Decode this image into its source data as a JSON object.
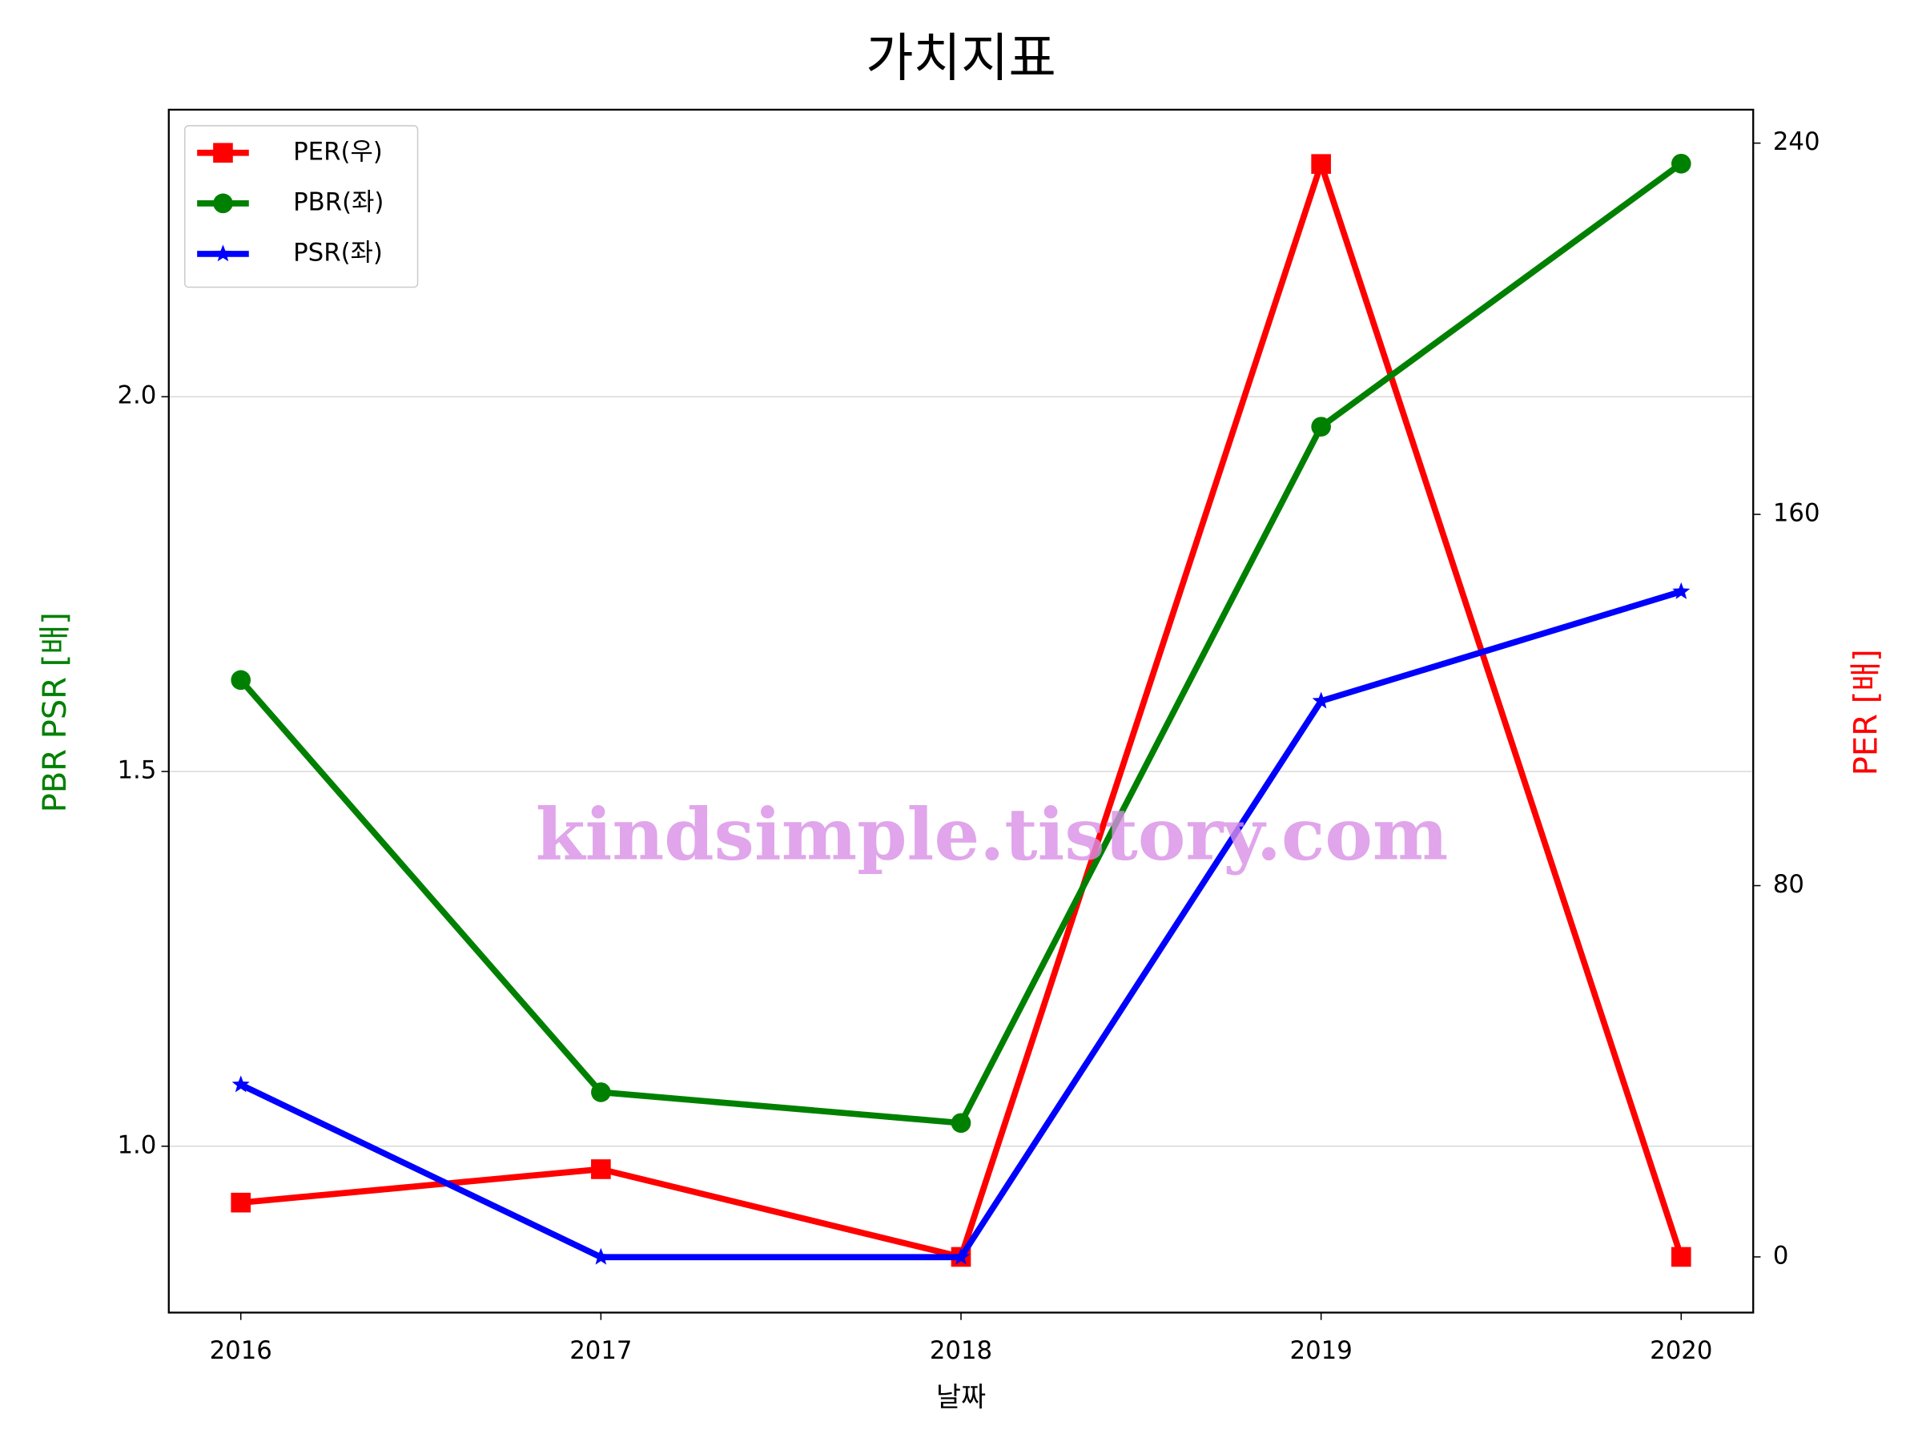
{
  "chart_data": {
    "type": "line",
    "title": "가치지표",
    "x_label": "날짜",
    "y_label": "PBR PSR [배]",
    "y2_label": "PER [배]",
    "x": [
      2016,
      2017,
      2018,
      2019,
      2020
    ],
    "xlim": [
      2015.8,
      2020.2
    ],
    "xticks": [
      2016,
      2017,
      2018,
      2019,
      2020
    ],
    "ylim": [
      0.778,
      2.383
    ],
    "yticks": [
      {
        "value": 1,
        "label": "1.0"
      },
      1.5,
      {
        "value": 2,
        "label": "2.0"
      }
    ],
    "y2lim": [
      -12,
      247.2
    ],
    "y2ticks": [
      0,
      80,
      160,
      240
    ],
    "grid": true,
    "legend": "upper left",
    "watermark": "kindsimple.tistory.com",
    "series": [
      {
        "name": "PER(우)",
        "color": "#ff0000",
        "marker": "square",
        "axis": "y2",
        "values": [
          11.7,
          18.9,
          0,
          235.5,
          0
        ]
      },
      {
        "name": "PBR(좌)",
        "color": "#008000",
        "marker": "circle",
        "values": [
          1.622,
          1.072,
          1.031,
          1.96,
          2.311
        ]
      },
      {
        "name": "PSR(좌)",
        "color": "#0000ff",
        "marker": "star",
        "values": [
          1.082,
          0.852,
          0.852,
          1.594,
          1.74
        ]
      }
    ]
  }
}
